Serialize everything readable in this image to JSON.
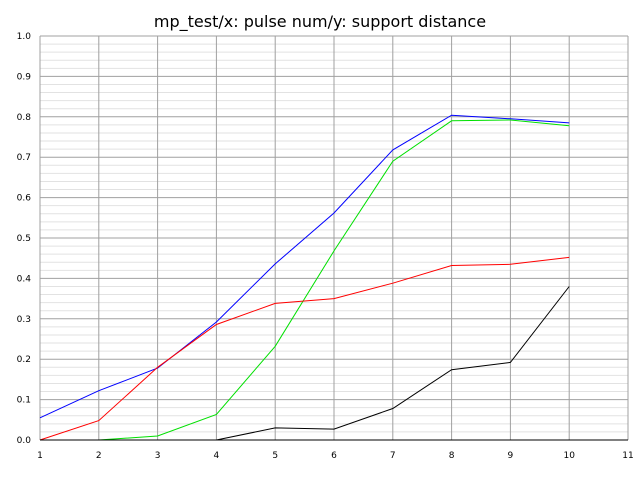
{
  "chart_data": {
    "type": "line",
    "title": "mp_test/x: pulse num/y: support distance",
    "xlabel": "",
    "ylabel": "",
    "xlim": [
      1,
      11
    ],
    "ylim": [
      0,
      1
    ],
    "x_ticks": [
      "1",
      "2",
      "3",
      "4",
      "5",
      "6",
      "7",
      "8",
      "9",
      "10",
      "11"
    ],
    "y_ticks": [
      "0.0",
      "0.1",
      "0.2",
      "0.3",
      "0.4",
      "0.5",
      "0.6",
      "0.7",
      "0.8",
      "0.9",
      "1.0"
    ],
    "grid": true,
    "legend": "none",
    "x": [
      1,
      2,
      3,
      4,
      5,
      6,
      7,
      8,
      9,
      10
    ],
    "series": [
      {
        "color": "#0000ff",
        "values": [
          0.055,
          0.122,
          0.178,
          0.292,
          0.436,
          0.562,
          0.718,
          0.804,
          0.795,
          0.785
        ]
      },
      {
        "color": "#00e000",
        "values": [
          0.0,
          0.0,
          0.01,
          0.063,
          0.232,
          0.468,
          0.69,
          0.79,
          0.792,
          0.778
        ]
      },
      {
        "color": "#ff0000",
        "values": [
          0.0,
          0.048,
          0.18,
          0.286,
          0.338,
          0.35,
          0.388,
          0.432,
          0.435,
          0.452
        ]
      },
      {
        "color": "#000000",
        "values": [
          0.0,
          0.0,
          0.0,
          0.0,
          0.03,
          0.027,
          0.078,
          0.174,
          0.192,
          0.38
        ]
      }
    ]
  }
}
